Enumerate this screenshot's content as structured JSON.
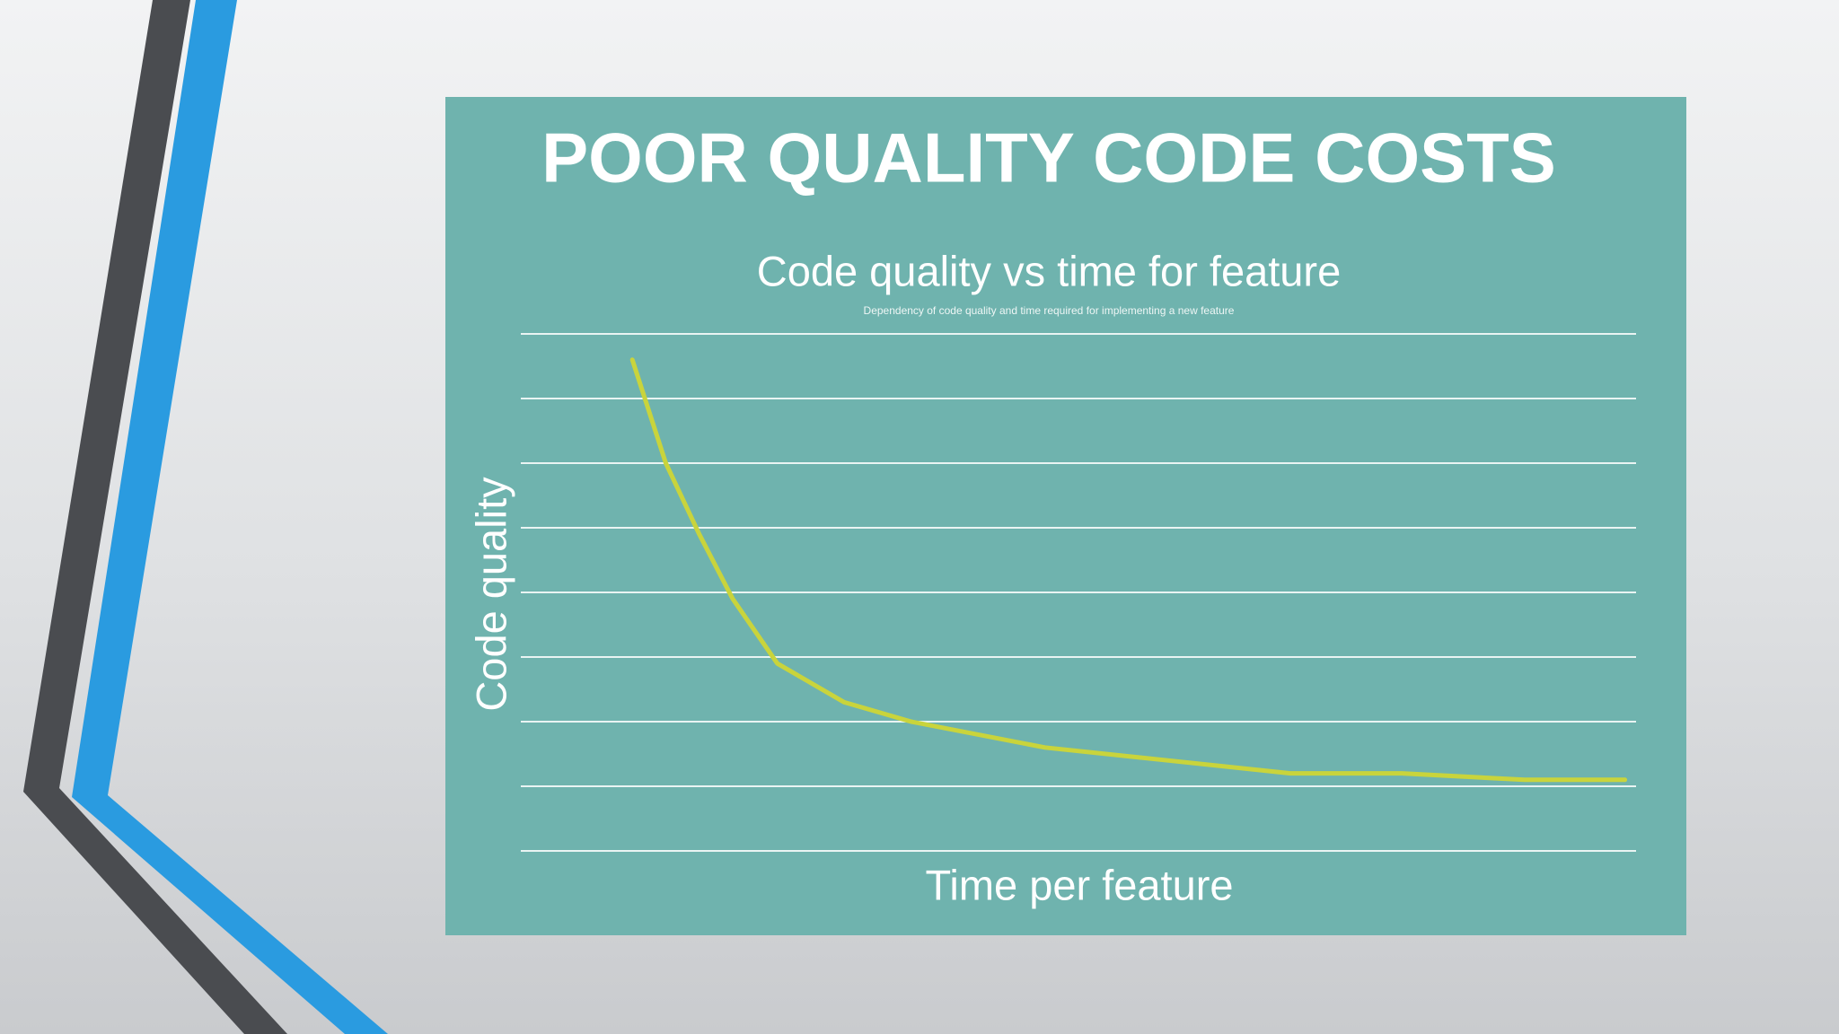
{
  "slide_title": "POOR QUALITY CODE COSTS",
  "chart_data": {
    "type": "line",
    "title": "Code quality vs time for feature",
    "subtitle": "Dependency of code quality and time required for implementing a new feature",
    "x_label": "Time per feature",
    "y_label": "Code quality",
    "x": [
      1.0,
      1.3,
      1.6,
      1.9,
      2.3,
      2.9,
      3.5,
      4.7,
      5.8,
      6.9,
      7.9,
      9.0,
      9.9
    ],
    "series": [
      {
        "name": "Code quality",
        "color": "#c9d43c",
        "values": [
          7.6,
          6.0,
          4.9,
          3.9,
          2.9,
          2.3,
          2.0,
          1.6,
          1.4,
          1.2,
          1.2,
          1.1,
          1.1
        ]
      }
    ],
    "xlim": [
      0,
      10
    ],
    "ylim": [
      0,
      8
    ],
    "yticks": [
      0,
      1,
      2,
      3,
      4,
      5,
      6,
      7,
      8
    ],
    "grid": true,
    "tick_labels": false,
    "legend": false
  }
}
